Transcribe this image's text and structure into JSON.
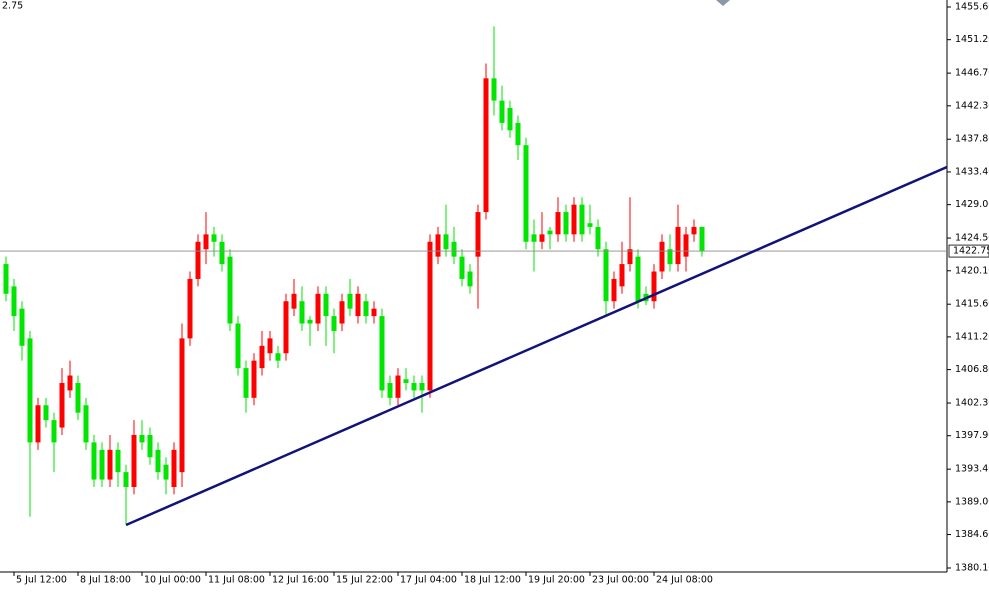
{
  "chart_data": {
    "type": "candlestick",
    "corner_text": "2.75",
    "categories": [
      null,
      "5 Jul 12:00",
      null,
      null,
      null,
      null,
      null,
      null,
      null,
      "8 Jul 18:00",
      null,
      null,
      null,
      null,
      null,
      null,
      null,
      "10 Jul 00:00",
      null,
      null,
      null,
      null,
      null,
      null,
      null,
      "11 Jul 08:00",
      null,
      null,
      null,
      null,
      null,
      null,
      null,
      "12 Jul 16:00",
      null,
      null,
      null,
      null,
      null,
      null,
      null,
      "15 Jul 22:00",
      null,
      null,
      null,
      null,
      null,
      null,
      null,
      "17 Jul 04:00",
      null,
      null,
      null,
      null,
      null,
      null,
      null,
      "18 Jul 12:00",
      null,
      null,
      null,
      null,
      null,
      null,
      null,
      "19 Jul 20:00",
      null,
      null,
      null,
      null,
      null,
      null,
      null,
      "23 Jul 00:00",
      null,
      null,
      null,
      null,
      null,
      null,
      null,
      "24 Jul 08:00",
      null,
      null,
      null,
      null,
      null,
      null
    ],
    "open": [
      1421,
      1418,
      1415,
      1411,
      1397,
      1402,
      1400,
      1399,
      1404,
      1405,
      1402,
      1397,
      1396,
      1392,
      1396,
      1393,
      1391,
      1398,
      1398,
      1396,
      1394,
      1391,
      1393,
      1411,
      1419,
      1423,
      1425,
      1424,
      1422,
      1413,
      1407,
      1403,
      1407,
      1409,
      1409,
      1409,
      1415,
      1416,
      1413.5,
      1413,
      1417,
      1414,
      1413,
      1417,
      1414,
      1416,
      1414,
      1414,
      1405,
      1403,
      1405.5,
      1405,
      1405,
      1404,
      1422,
      1425,
      1424,
      1422,
      1420,
      1422,
      1428,
      1446,
      1443,
      1442,
      1440,
      1437,
      1425,
      1424,
      1425.5,
      1425,
      1428,
      1425,
      1429,
      1426.5,
      1426,
      1423,
      1416,
      1418,
      1421,
      1422,
      1417,
      1416,
      1420,
      1423,
      1421,
      1422,
      1425,
      1426
    ],
    "high": [
      1422,
      1419,
      1416,
      1412,
      1403,
      1403,
      1401,
      1407,
      1408,
      1406,
      1403,
      1398,
      1397,
      1398,
      1397,
      1394,
      1400,
      1400,
      1399,
      1397,
      1395,
      1397,
      1413,
      1420,
      1425,
      1428,
      1426,
      1425,
      1423,
      1414,
      1408,
      1409,
      1412,
      1412,
      1410,
      1417,
      1419,
      1418,
      1414,
      1418,
      1418,
      1415,
      1417,
      1419,
      1418,
      1417,
      1416,
      1415,
      1406,
      1407,
      1407,
      1406,
      1406,
      1425,
      1426,
      1429,
      1426,
      1423,
      1421,
      1429,
      1448,
      1453,
      1445,
      1443,
      1441,
      1438,
      1427,
      1428,
      1426,
      1430,
      1429,
      1430,
      1430,
      1429,
      1427,
      1424,
      1420,
      1424,
      1430,
      1423,
      1418,
      1421,
      1425,
      1425,
      1429,
      1426,
      1427,
      1426
    ],
    "low": [
      1416,
      1412,
      1408,
      1387,
      1396,
      1399,
      1393,
      1398,
      1403,
      1400,
      1396,
      1391,
      1391,
      1391,
      1391,
      1386,
      1390,
      1396,
      1394,
      1392,
      1390,
      1390,
      1391,
      1410,
      1418,
      1421,
      1422,
      1420,
      1412,
      1406,
      1401,
      1402,
      1406,
      1408,
      1407,
      1408,
      1414,
      1412,
      1410,
      1412,
      1410,
      1409,
      1412,
      1414,
      1413,
      1413,
      1413,
      1403,
      1402,
      1402,
      1404,
      1403,
      1401,
      1403,
      1421,
      1422,
      1421,
      1418,
      1417,
      1415,
      1427,
      1441,
      1439,
      1438,
      1435,
      1423,
      1420,
      1423,
      1423,
      1424,
      1424,
      1424,
      1424,
      1425,
      1422,
      1414,
      1415,
      1417,
      1420,
      1415,
      1415.5,
      1415,
      1419,
      1420,
      1420,
      1420,
      1424,
      1422
    ],
    "close": [
      1417,
      1414,
      1410,
      1397,
      1402,
      1400,
      1397,
      1405,
      1406,
      1401,
      1397,
      1392,
      1392,
      1396,
      1393,
      1391,
      1398,
      1397,
      1395,
      1393,
      1392,
      1396,
      1411,
      1419,
      1424,
      1425,
      1424,
      1421,
      1413,
      1407,
      1403,
      1408,
      1410,
      1411,
      1408,
      1416,
      1417,
      1413,
      1413,
      1417,
      1414,
      1412,
      1416,
      1415,
      1417,
      1414,
      1415,
      1404,
      1403,
      1406,
      1405,
      1404,
      1404,
      1424,
      1425,
      1423,
      1422,
      1419,
      1418,
      1428,
      1446,
      1443,
      1440,
      1439,
      1437,
      1424,
      1424,
      1425,
      1425,
      1428,
      1425,
      1429,
      1425,
      1426,
      1423,
      1416,
      1419,
      1421,
      1423,
      1416,
      1416,
      1420,
      1424,
      1421,
      1426,
      1425,
      1426,
      1422.75
    ],
    "up_color": "#ff0000",
    "down_color": "#00e600",
    "last_price": 1422.75,
    "ylim": [
      1379.56,
      1456.54
    ],
    "yticks": [
      {
        "value": 1455.6,
        "label": "1455.60"
      },
      {
        "value": 1451.2,
        "label": "1451.20"
      },
      {
        "value": 1446.7,
        "label": "1446.70"
      },
      {
        "value": 1442.3,
        "label": "1442.30"
      },
      {
        "value": 1437.8,
        "label": "1437.80"
      },
      {
        "value": 1433.4,
        "label": "1433.40"
      },
      {
        "value": 1429,
        "label": "1429.00"
      },
      {
        "value": 1424.5,
        "label": "1424.50"
      },
      {
        "value": 1420.1,
        "label": "1420.10"
      },
      {
        "value": 1415.6,
        "label": "1415.60"
      },
      {
        "value": 1411.2,
        "label": "1411.20"
      },
      {
        "value": 1406.8,
        "label": "1406.80"
      },
      {
        "value": 1402.3,
        "label": "1402.30"
      },
      {
        "value": 1397.9,
        "label": "1397.90"
      },
      {
        "value": 1393.4,
        "label": "1393.40"
      },
      {
        "value": 1389,
        "label": "1389.00"
      },
      {
        "value": 1384.6,
        "label": "1384.60"
      },
      {
        "value": 1380.1,
        "label": "1380.10"
      }
    ]
  }
}
